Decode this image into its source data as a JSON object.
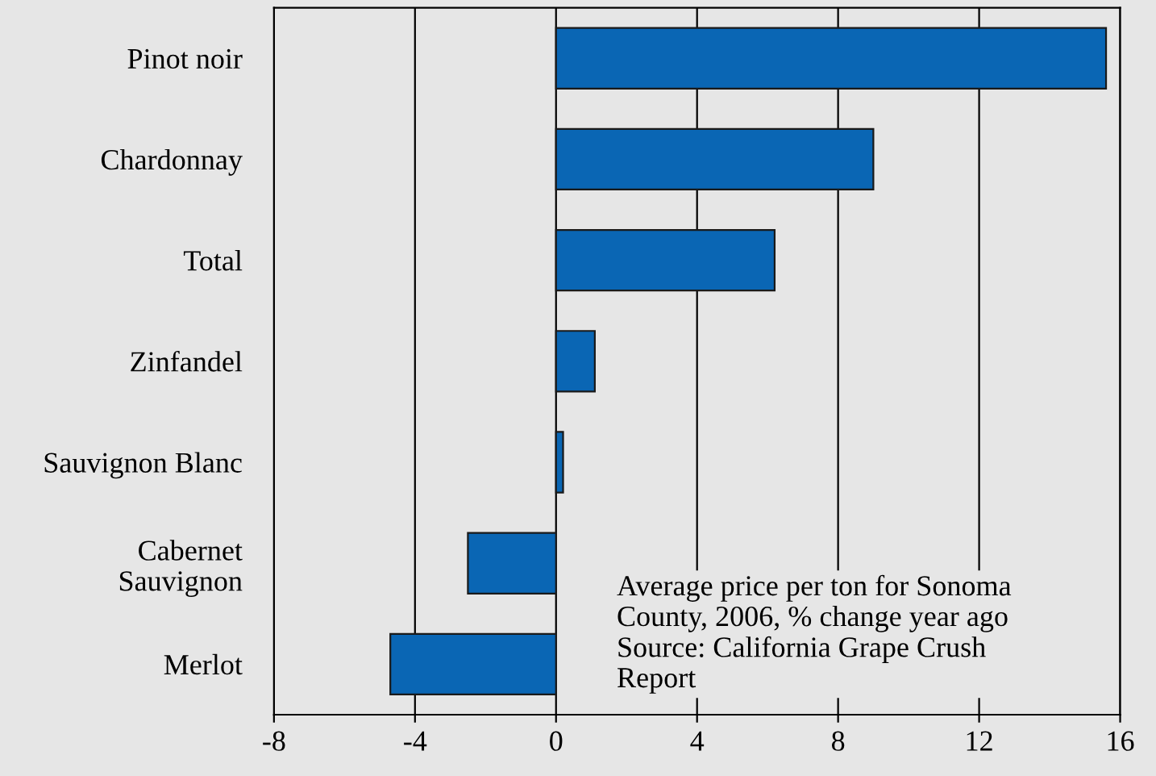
{
  "chart_data": {
    "type": "bar",
    "orientation": "horizontal",
    "categories": [
      "Pinot noir",
      "Chardonnay",
      "Total",
      "Zinfandel",
      "Sauvignon Blanc",
      "Cabernet\nSauvignon",
      "Merlot"
    ],
    "values": [
      15.6,
      9.0,
      6.2,
      1.1,
      0.2,
      -2.5,
      -4.7
    ],
    "color": "#0a66b4",
    "xlim": [
      -8,
      16
    ],
    "xticks": [
      -8,
      -4,
      0,
      4,
      8,
      12,
      16
    ],
    "grid": "x",
    "annotations": [
      "Average price per ton for Sonoma\nCounty, 2006, % change year ago\nSource: California Grape Crush\nReport"
    ]
  }
}
